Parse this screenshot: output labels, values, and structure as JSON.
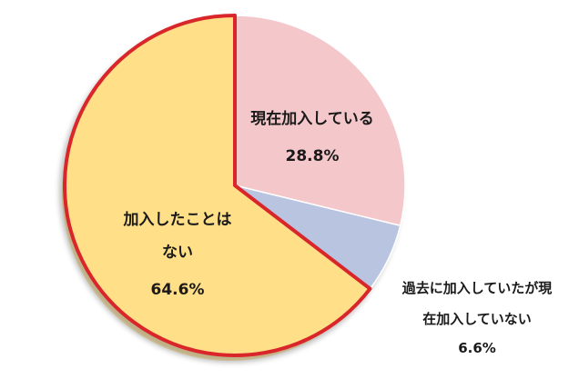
{
  "chart_data": {
    "type": "pie",
    "slices": [
      {
        "label_lines": [
          "現在加入している"
        ],
        "value_label": "28.8%",
        "value": 28.8,
        "color": "#f4c7cb"
      },
      {
        "label_lines": [
          "過去に加入していたが現",
          "在加入していない"
        ],
        "value_label": "6.6%",
        "value": 6.6,
        "color": "#b8c4e0"
      },
      {
        "label_lines": [
          "加入したことは",
          "ない"
        ],
        "value_label": "64.6%",
        "value": 64.6,
        "color": "#ffdf87",
        "highlight_border": "#d9262b"
      }
    ]
  }
}
